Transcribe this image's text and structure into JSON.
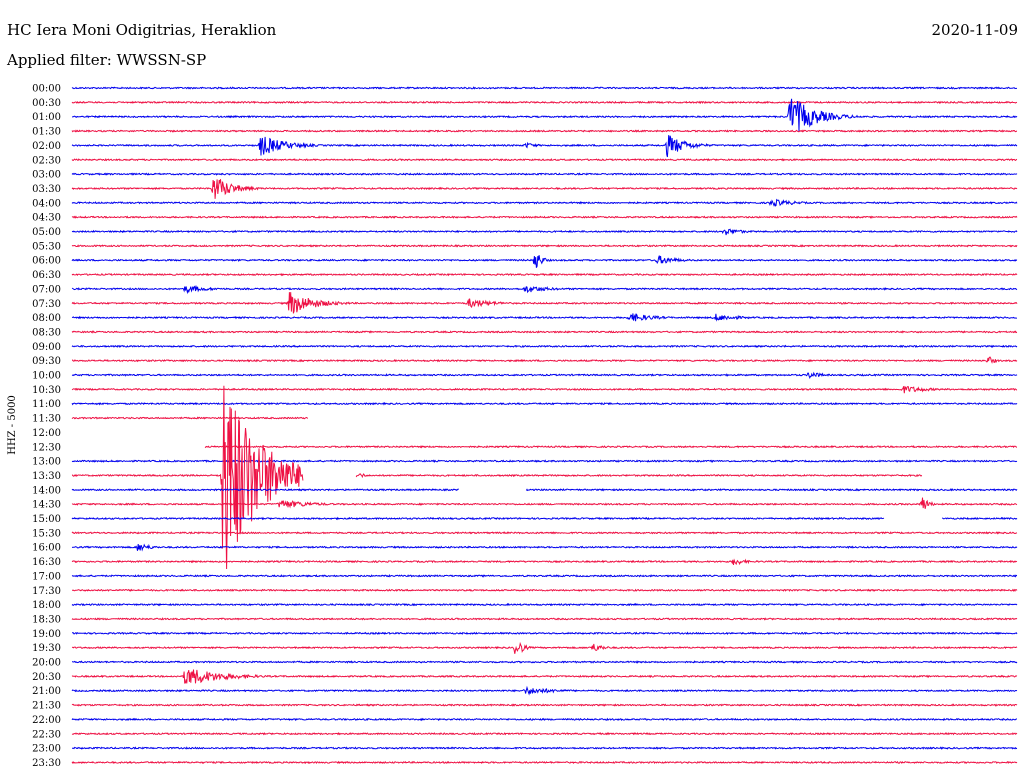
{
  "station_title": "HC Iera Moni Odigitrias, Heraklion",
  "date": "2020-11-09",
  "filter_text": "Applied filter: WWSSN-SP",
  "channel_label": "HHZ - 5000",
  "chart_data": {
    "type": "line",
    "title": "HC Iera Moni Odigitrias, Heraklion",
    "subtitle": "Applied filter: WWSSN-SP",
    "ylabel": "HHZ - 5000",
    "colors": {
      "even": "#0000ee",
      "odd": "#ee1144"
    },
    "categories": [
      "00:00",
      "00:30",
      "01:00",
      "01:30",
      "02:00",
      "02:30",
      "03:00",
      "03:30",
      "04:00",
      "04:30",
      "05:00",
      "05:30",
      "06:00",
      "06:30",
      "07:00",
      "07:30",
      "08:00",
      "08:30",
      "09:00",
      "09:30",
      "10:00",
      "10:30",
      "11:00",
      "11:30",
      "12:00",
      "12:30",
      "13:00",
      "13:30",
      "14:00",
      "14:30",
      "15:00",
      "15:30",
      "16:00",
      "16:30",
      "17:00",
      "17:30",
      "18:00",
      "18:30",
      "19:00",
      "19:30",
      "20:00",
      "20:30",
      "21:00",
      "21:30",
      "22:00",
      "22:30",
      "23:00",
      "23:30"
    ],
    "events": [
      {
        "row": 2,
        "t": 0.76,
        "amp": 22,
        "dur": 0.04
      },
      {
        "row": 4,
        "t": 0.2,
        "amp": 11,
        "dur": 0.04
      },
      {
        "row": 4,
        "t": 0.48,
        "amp": 3,
        "dur": 0.02
      },
      {
        "row": 4,
        "t": 0.63,
        "amp": 12,
        "dur": 0.03
      },
      {
        "row": 7,
        "t": 0.15,
        "amp": 14,
        "dur": 0.03
      },
      {
        "row": 8,
        "t": 0.74,
        "amp": 4,
        "dur": 0.04
      },
      {
        "row": 10,
        "t": 0.69,
        "amp": 4,
        "dur": 0.03
      },
      {
        "row": 12,
        "t": 0.49,
        "amp": 12,
        "dur": 0.01
      },
      {
        "row": 12,
        "t": 0.62,
        "amp": 5,
        "dur": 0.03
      },
      {
        "row": 14,
        "t": 0.12,
        "amp": 4,
        "dur": 0.04
      },
      {
        "row": 14,
        "t": 0.48,
        "amp": 4,
        "dur": 0.04
      },
      {
        "row": 15,
        "t": 0.23,
        "amp": 13,
        "dur": 0.04
      },
      {
        "row": 15,
        "t": 0.42,
        "amp": 5,
        "dur": 0.04
      },
      {
        "row": 16,
        "t": 0.59,
        "amp": 5,
        "dur": 0.04
      },
      {
        "row": 16,
        "t": 0.68,
        "amp": 4,
        "dur": 0.04
      },
      {
        "row": 19,
        "t": 0.97,
        "amp": 5,
        "dur": 0.01
      },
      {
        "row": 20,
        "t": 0.78,
        "amp": 4,
        "dur": 0.02
      },
      {
        "row": 21,
        "t": 0.88,
        "amp": 4,
        "dur": 0.04
      },
      {
        "row": 27,
        "t": 0.16,
        "amp": 110,
        "dur": 0.06
      },
      {
        "row": 29,
        "t": 0.22,
        "amp": 5,
        "dur": 0.05
      },
      {
        "row": 29,
        "t": 0.9,
        "amp": 9,
        "dur": 0.01
      },
      {
        "row": 32,
        "t": 0.07,
        "amp": 5,
        "dur": 0.02
      },
      {
        "row": 33,
        "t": 0.7,
        "amp": 4,
        "dur": 0.02
      },
      {
        "row": 39,
        "t": 0.47,
        "amp": 12,
        "dur": 0.01
      },
      {
        "row": 39,
        "t": 0.55,
        "amp": 5,
        "dur": 0.02
      },
      {
        "row": 41,
        "t": 0.12,
        "amp": 10,
        "dur": 0.06
      },
      {
        "row": 42,
        "t": 0.48,
        "amp": 4,
        "dur": 0.05
      }
    ],
    "gaps": [
      {
        "row": 23,
        "start": 0.25,
        "end": 1.0
      },
      {
        "row": 24,
        "start": 0.0,
        "end": 1.0
      },
      {
        "row": 25,
        "start": 0.0,
        "end": 0.14
      },
      {
        "row": 27,
        "start": 0.245,
        "end": 0.3
      },
      {
        "row": 27,
        "start": 0.9,
        "end": 1.0
      },
      {
        "row": 28,
        "start": 0.41,
        "end": 0.48
      },
      {
        "row": 30,
        "start": 0.86,
        "end": 0.92
      }
    ]
  }
}
